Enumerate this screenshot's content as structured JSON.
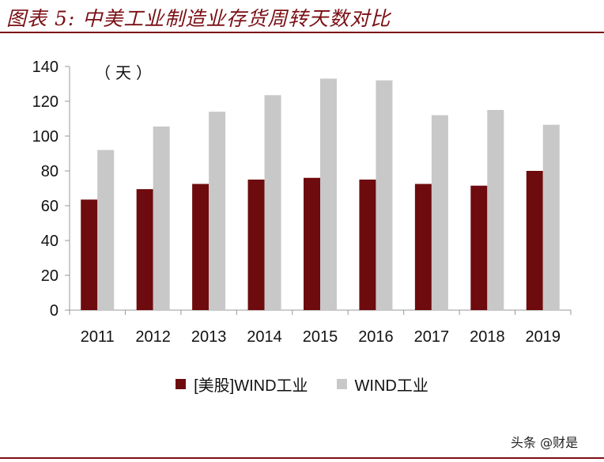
{
  "header": {
    "title": "图表 5: 中美工业制造业存货周转天数对比"
  },
  "watermark": "头条 @财是",
  "chart_data": {
    "type": "bar",
    "unit_label": "（天）",
    "categories": [
      "2011",
      "2012",
      "2013",
      "2014",
      "2015",
      "2016",
      "2017",
      "2018",
      "2019"
    ],
    "series": [
      {
        "name": "[美股]WIND工业",
        "color": "#6e0b0e",
        "values": [
          63.5,
          69.5,
          72.5,
          75,
          76,
          75,
          72.5,
          71.5,
          80
        ]
      },
      {
        "name": "WIND工业",
        "color": "#c8c8c8",
        "values": [
          92,
          105.5,
          114,
          123.5,
          133,
          132,
          112,
          115,
          106.5
        ]
      }
    ],
    "ylim": [
      0,
      140
    ],
    "yticks": [
      0,
      20,
      40,
      60,
      80,
      100,
      120,
      140
    ],
    "grid": false,
    "legend_position": "bottom"
  }
}
